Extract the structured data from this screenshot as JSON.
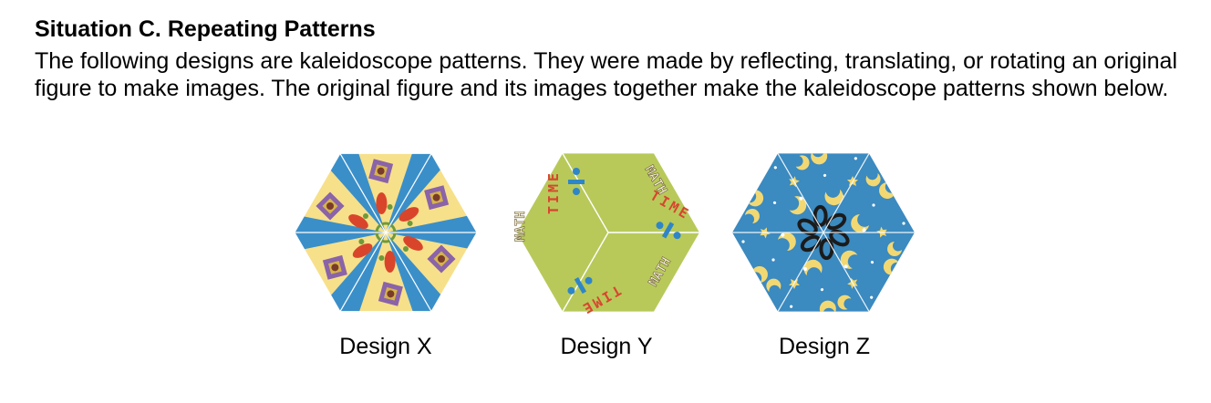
{
  "section": {
    "title": "Situation C. Repeating Patterns",
    "intro": "The following designs are kaleidoscope patterns. They were made by reflecting, translating, or rotating an original figure to make images. The original figure and its images together make the kaleidoscope patterns shown below."
  },
  "designs": [
    {
      "caption": "Design X",
      "art": "floral-tile-kaleidoscope"
    },
    {
      "caption": "Design Y",
      "art": "math-time-kaleidoscope",
      "letters": [
        "M",
        "A",
        "T",
        "H",
        "T",
        "I",
        "M",
        "E"
      ]
    },
    {
      "caption": "Design Z",
      "art": "moon-and-stars-kaleidoscope"
    }
  ],
  "colors": {
    "x_blue": "#3a8fc9",
    "x_yellow": "#f7e08a",
    "x_red": "#d9452b",
    "x_purple": "#8a63a8",
    "y_green": "#b8c95a",
    "y_blue": "#2f86c7",
    "y_red": "#d8452f",
    "z_blue": "#3b8ac0",
    "z_yellow": "#f2d873"
  }
}
